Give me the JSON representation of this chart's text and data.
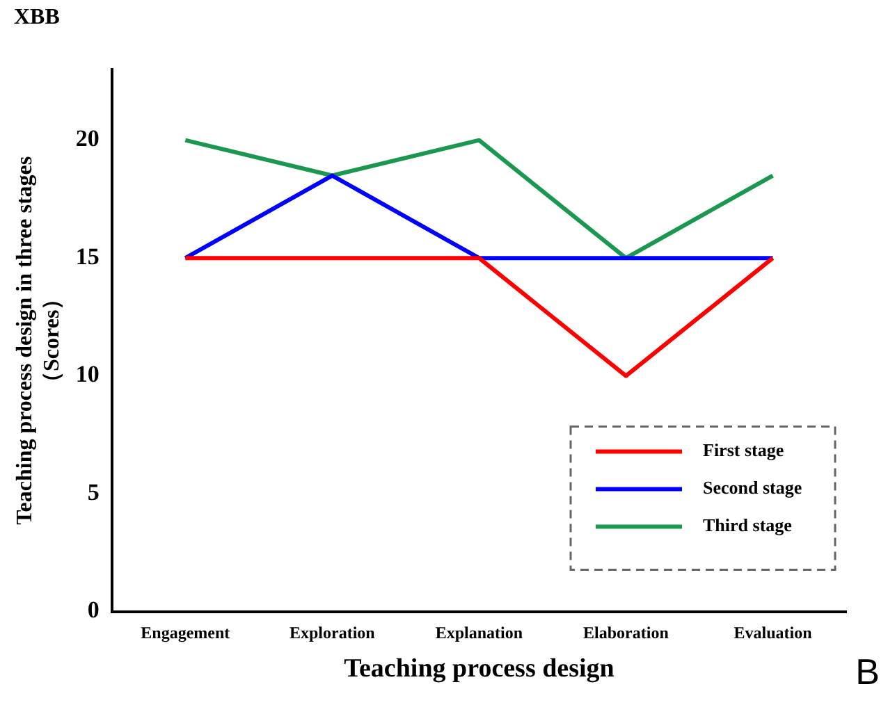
{
  "chart_data": {
    "type": "line",
    "xlabel": "Teaching process design",
    "ylabel": "Teaching process design in three stages\n（Scores）",
    "categories": [
      "Engagement",
      "Exploration",
      "Explanation",
      "Elaboration",
      "Evaluation"
    ],
    "series": [
      {
        "name": "First stage",
        "color": "#ff0000",
        "values": [
          15,
          15,
          15,
          10,
          15
        ]
      },
      {
        "name": "Second stage",
        "color": "#0000ff",
        "values": [
          15,
          18.5,
          15,
          15,
          15
        ]
      },
      {
        "name": "Third stage",
        "color": "#1a9850",
        "values": [
          20,
          18.5,
          20,
          15,
          18.5
        ]
      }
    ],
    "ylim": [
      0,
      23
    ],
    "yticks": [
      0,
      5,
      10,
      15,
      20
    ],
    "grid": false,
    "legend": "bottom right",
    "marker": "none",
    "line_style": "solid",
    "annotations": [
      "XBB",
      "B"
    ]
  }
}
